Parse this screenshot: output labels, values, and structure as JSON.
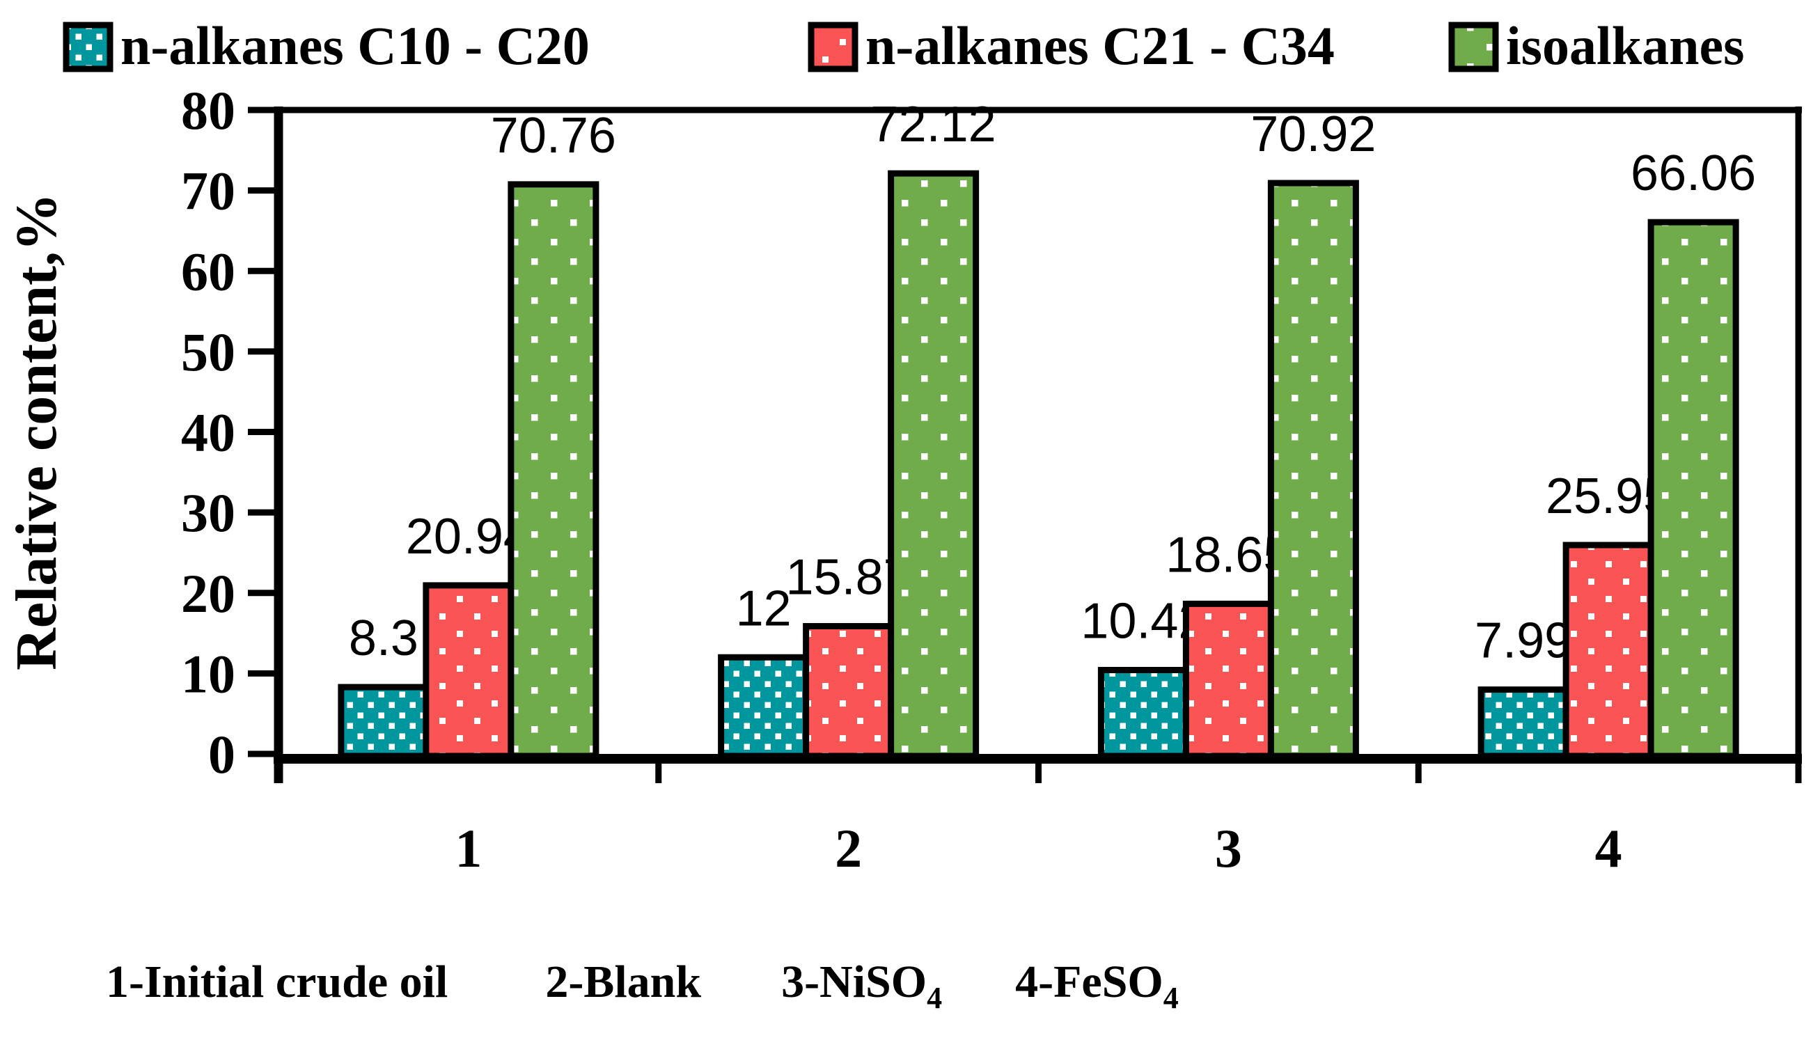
{
  "chart_data": {
    "type": "bar",
    "title": "",
    "ylabel": "Relative content,%",
    "xlabel": "",
    "ylim": [
      0,
      80
    ],
    "yticks": [
      0,
      10,
      20,
      30,
      40,
      50,
      60,
      70,
      80
    ],
    "categories": [
      "1",
      "2",
      "3",
      "4"
    ],
    "series": [
      {
        "name": "n-alkanes C10 - C20",
        "color": "#00969E",
        "values": [
          8.3,
          12,
          10.42,
          7.99
        ]
      },
      {
        "name": "n-alkanes C21 - C34",
        "color": "#FB5455",
        "values": [
          20.94,
          15.87,
          18.65,
          25.95
        ]
      },
      {
        "name": "isoalkanes",
        "color": "#71AC4B",
        "values": [
          70.76,
          72.12,
          70.92,
          66.06
        ]
      }
    ],
    "bar_labels": [
      [
        "8.3",
        "12",
        "10.42",
        "7.99"
      ],
      [
        "20.94",
        "15.87",
        "18.65",
        "25.95"
      ],
      [
        "70.76",
        "72.12",
        "70.92",
        "66.06"
      ]
    ],
    "legend_position": "top",
    "grid": false,
    "fill_pattern": "white-dots",
    "outline_color": "#000000"
  },
  "footnote": {
    "items": [
      {
        "parts": [
          {
            "t": "1-Initial crude oil"
          }
        ]
      },
      {
        "parts": [
          {
            "t": "2-Blank"
          }
        ]
      },
      {
        "parts": [
          {
            "t": "3-NiSO"
          },
          {
            "t": "4",
            "sub": true
          }
        ]
      },
      {
        "parts": [
          {
            "t": "4-FeSO"
          },
          {
            "t": "4",
            "sub": true
          }
        ]
      }
    ]
  }
}
